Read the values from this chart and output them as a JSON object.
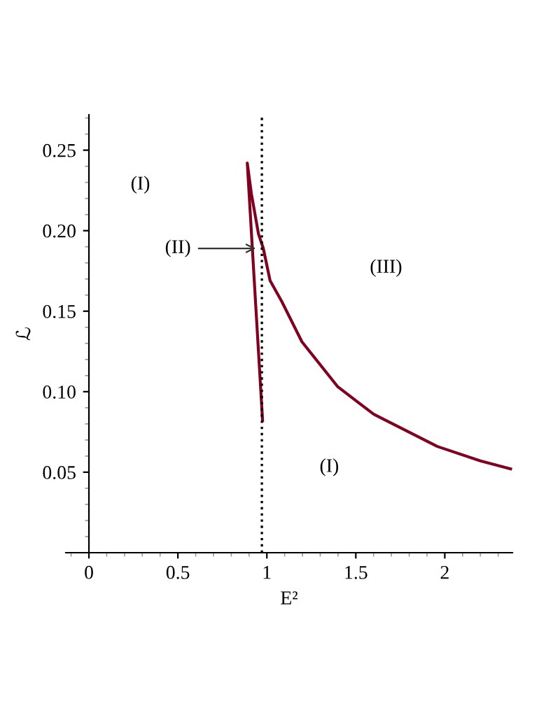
{
  "chart_data": {
    "type": "line",
    "xlabel": "E²",
    "ylabel": "ℒ",
    "series": [
      {
        "color": "#800020",
        "x": [
          0.976,
          0.89,
          0.913,
          0.953,
          0.98,
          1.018,
          1.084,
          1.197,
          1.399,
          1.601,
          1.958,
          2.2,
          2.37
        ],
        "values": [
          0.082,
          0.242,
          0.223,
          0.198,
          0.189,
          0.169,
          0.156,
          0.131,
          0.103,
          0.086,
          0.066,
          0.057,
          0.052
        ]
      }
    ],
    "xlim": [
      -0.13,
      2.38
    ],
    "ylim": [
      0,
      0.272
    ],
    "xticks": [
      0,
      0.5,
      1,
      1.5,
      2
    ],
    "yticks": [
      0.05,
      {
        "value": 0.1,
        "label": "0.10"
      },
      0.15,
      {
        "value": 0.2,
        "label": "0.20"
      },
      0.25
    ],
    "ref_lines": [
      {
        "axis": "x",
        "value": 0.972,
        "line_style": "dotted",
        "color": "#000000"
      }
    ],
    "annotations": [
      "(I)",
      {
        "text": "(II)",
        "x": 0.96,
        "y": 0.189
      },
      "(III)",
      "(I)"
    ],
    "grid": false,
    "legend": false,
    "marker": "none",
    "line_style": "solid"
  }
}
